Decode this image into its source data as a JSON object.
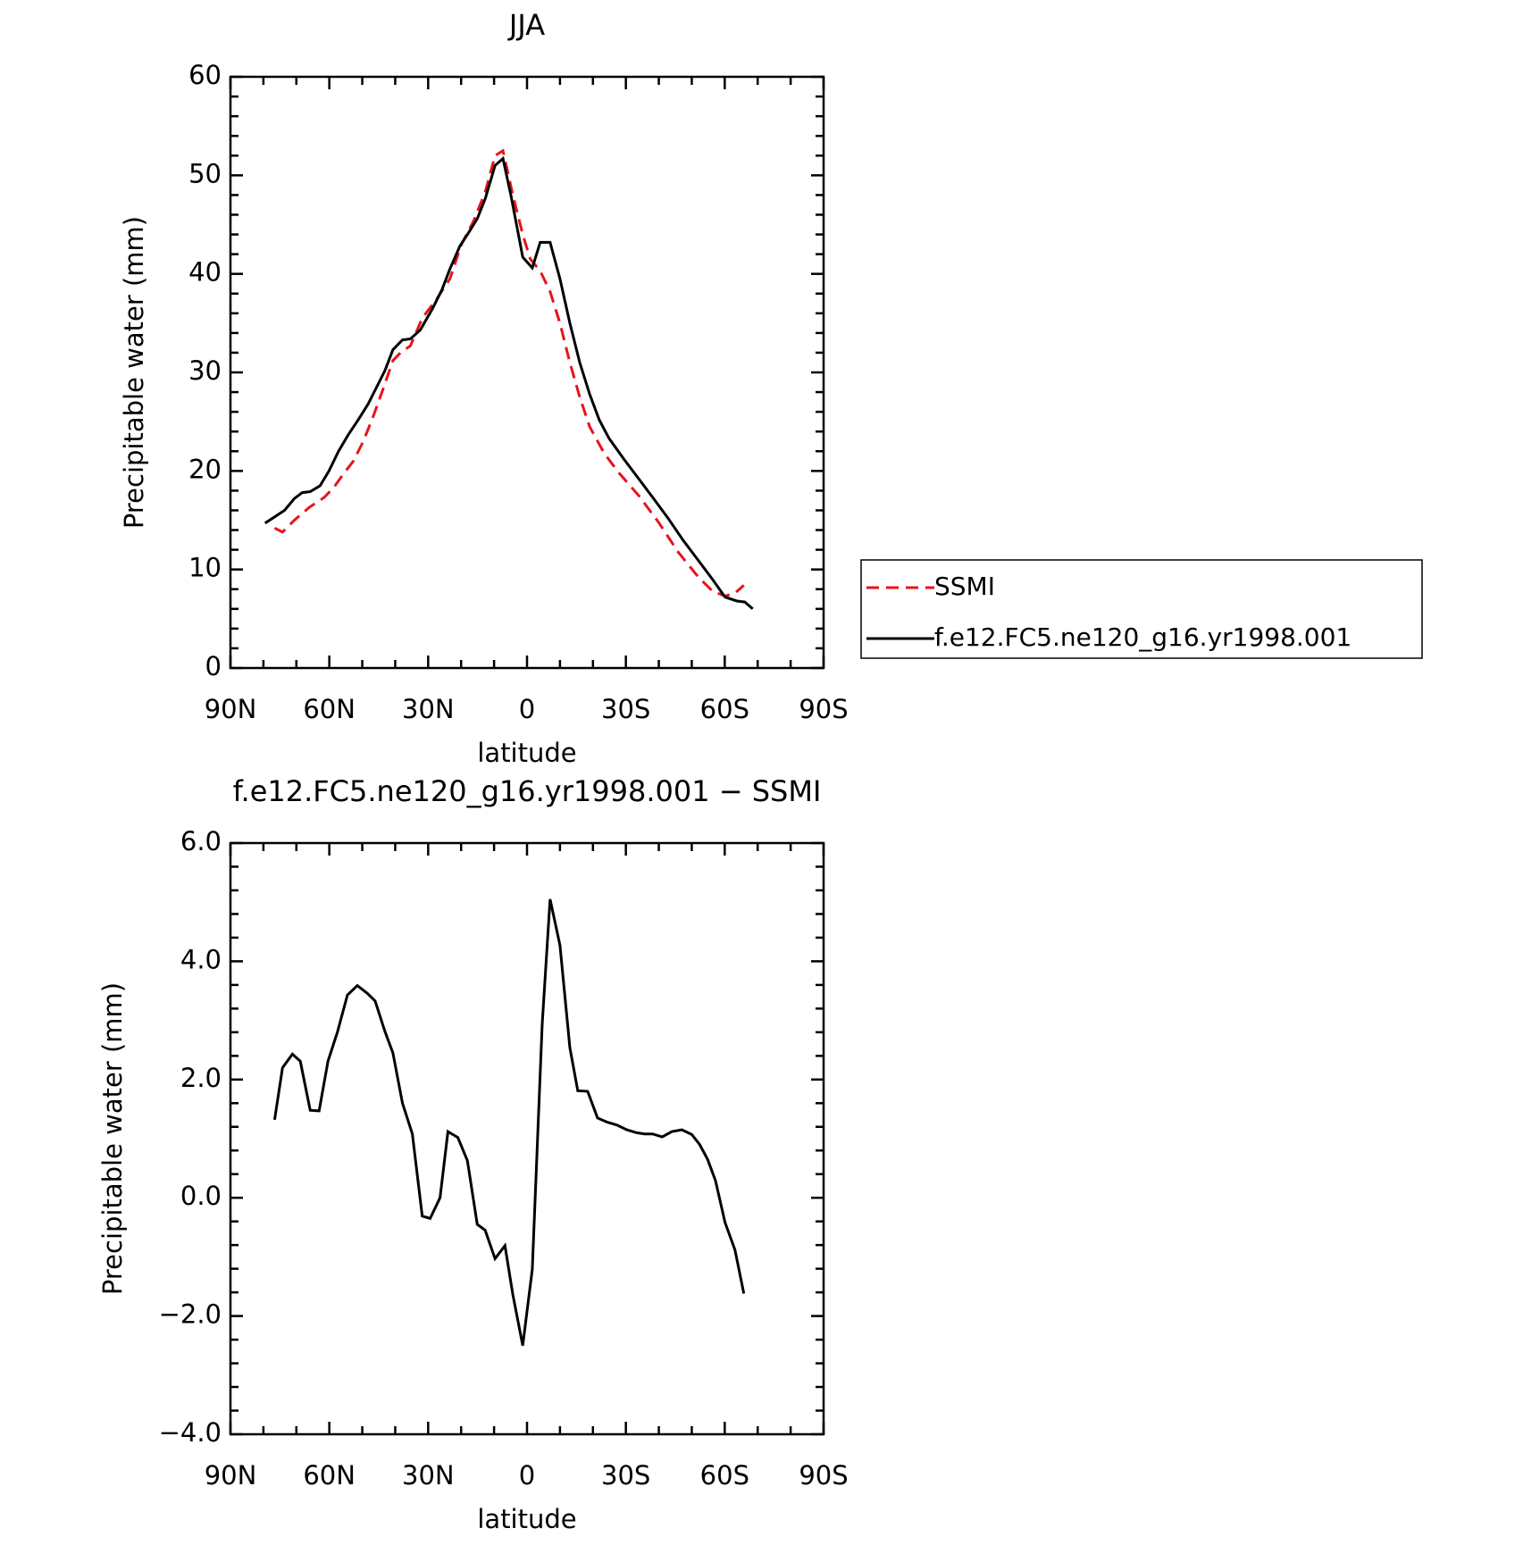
{
  "chart_data": [
    {
      "type": "line",
      "title": "JJA",
      "xlabel": "latitude",
      "ylabel": "Precipitable water (mm)",
      "xlim": [
        90,
        -90
      ],
      "xticks": [
        {
          "value": 90,
          "label": "90N"
        },
        {
          "value": 60,
          "label": "60N"
        },
        {
          "value": 30,
          "label": "30N"
        },
        0,
        {
          "value": -30,
          "label": "30S"
        },
        {
          "value": -60,
          "label": "60S"
        },
        {
          "value": -90,
          "label": "90S"
        }
      ],
      "ylim": [
        0,
        60
      ],
      "yticks": [
        0,
        10,
        20,
        30,
        40,
        50,
        60
      ],
      "legend": "right",
      "series": [
        {
          "name": "SSMI",
          "color": "#e8131b",
          "linestyle": "dashed",
          "x": [
            76.6,
            74.2,
            70.6,
            66.1,
            61.6,
            58.7,
            55.7,
            52.7,
            49.7,
            46.7,
            43.7,
            40.7,
            38.4,
            35.4,
            31.8,
            27.3,
            23.4,
            19.9,
            16.3,
            12.7,
            9.7,
            7.3,
            4.3,
            1.3,
            -1.0,
            -4.0,
            -7.0,
            -10.0,
            -13.0,
            -16.0,
            -19.0,
            -23.4,
            -27.9,
            -33.9,
            -39.9,
            -45.8,
            -51.8,
            -56.3,
            -60.1,
            -63.1,
            -65.8
          ],
          "values": [
            14.2,
            13.8,
            15,
            16.3,
            17.3,
            18.3,
            19.7,
            21,
            23,
            25.5,
            28.3,
            31.2,
            32,
            32.7,
            35.5,
            37.5,
            39.5,
            43,
            45.3,
            48.3,
            52,
            52.5,
            48,
            44,
            41.5,
            40.3,
            38.2,
            35,
            31,
            27.5,
            24.5,
            21.8,
            19.8,
            17.5,
            14.8,
            11.8,
            9.3,
            7.8,
            7.3,
            7.6,
            8.4
          ]
        },
        {
          "name": "f.e12.FC5.ne120_g16.yr1998.001",
          "color": "#000000",
          "linestyle": "solid",
          "x": [
            79.5,
            73.6,
            70.6,
            68.2,
            65.8,
            62.8,
            60.1,
            57.2,
            54.2,
            51.2,
            48.2,
            45.2,
            43.1,
            40.7,
            37.8,
            35.4,
            32.4,
            28.8,
            25.8,
            23.4,
            20.4,
            17.5,
            15.1,
            12.7,
            9.7,
            7.3,
            4.9,
            1.3,
            -1.6,
            -4.0,
            -7.0,
            -10.0,
            -13.0,
            -16.0,
            -19.0,
            -21.9,
            -24.9,
            -29.4,
            -33.9,
            -38.4,
            -42.8,
            -47.3,
            -51.8,
            -56.3,
            -60.1,
            -63.7,
            -66.1,
            -68.5
          ],
          "values": [
            14.7,
            16,
            17.2,
            17.8,
            17.9,
            18.5,
            20,
            22,
            23.7,
            25.2,
            26.8,
            28.8,
            30.2,
            32.3,
            33.3,
            33.4,
            34.3,
            36.4,
            38.4,
            40.5,
            42.8,
            44.3,
            45.6,
            47.6,
            51,
            51.7,
            48,
            41.7,
            40.6,
            43.2,
            43.2,
            39.5,
            35,
            31,
            27.8,
            25.2,
            23.3,
            21.2,
            19.2,
            17.2,
            15.2,
            13,
            11,
            9,
            7.2,
            6.8,
            6.7,
            6
          ]
        }
      ]
    },
    {
      "type": "line",
      "title": "f.e12.FC5.ne120_g16.yr1998.001 − SSMI",
      "xlabel": "latitude",
      "ylabel": "Precipitable water (mm)",
      "xlim": [
        90,
        -90
      ],
      "xticks": [
        {
          "value": 90,
          "label": "90N"
        },
        {
          "value": 60,
          "label": "60N"
        },
        {
          "value": 30,
          "label": "30N"
        },
        0,
        {
          "value": -30,
          "label": "30S"
        },
        {
          "value": -60,
          "label": "60S"
        },
        {
          "value": -90,
          "label": "90S"
        }
      ],
      "ylim": [
        -4,
        6
      ],
      "yticks": [
        {
          "value": -4,
          "label": "−4.0"
        },
        {
          "value": -2,
          "label": "−2.0"
        },
        {
          "value": 0,
          "label": "0.0"
        },
        {
          "value": 2,
          "label": "2.0"
        },
        {
          "value": 4,
          "label": "4.0"
        },
        {
          "value": 6,
          "label": "6.0"
        }
      ],
      "series": [
        {
          "color": "#000000",
          "linestyle": "solid",
          "x": [
            76.6,
            74.2,
            71.2,
            68.8,
            65.8,
            63.1,
            60.4,
            57.5,
            54.5,
            51.5,
            48.5,
            46.1,
            43.1,
            40.7,
            37.8,
            34.8,
            31.8,
            29.4,
            26.4,
            24.0,
            21.0,
            18.1,
            15.1,
            12.7,
            9.7,
            6.7,
            4.3,
            1.3,
            -1.6,
            -4.6,
            -7.0,
            -10.0,
            -13.0,
            -15.4,
            -18.4,
            -21.4,
            -24.3,
            -27.3,
            -30.3,
            -33.3,
            -35.7,
            -38.1,
            -41.0,
            -44.0,
            -47.0,
            -50.0,
            -52.4,
            -54.8,
            -57.2,
            -60.1,
            -63.1,
            -65.8
          ],
          "values": [
            1.32,
            2.2,
            2.43,
            2.31,
            1.48,
            1.47,
            2.31,
            2.81,
            3.43,
            3.59,
            3.46,
            3.33,
            2.81,
            2.45,
            1.6,
            1.08,
            -0.31,
            -0.35,
            0.0,
            1.12,
            1.02,
            0.63,
            -0.45,
            -0.55,
            -1.03,
            -0.81,
            -1.64,
            -2.5,
            -1.21,
            2.93,
            5.05,
            4.27,
            2.54,
            1.81,
            1.8,
            1.35,
            1.28,
            1.23,
            1.15,
            1.1,
            1.08,
            1.08,
            1.03,
            1.12,
            1.15,
            1.07,
            0.9,
            0.65,
            0.29,
            -0.42,
            -0.88,
            -1.62
          ]
        }
      ]
    }
  ]
}
